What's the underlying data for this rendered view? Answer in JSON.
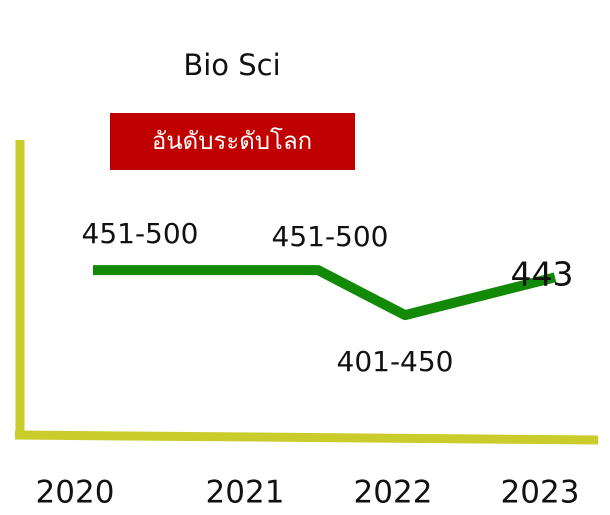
{
  "chart_data": {
    "type": "line",
    "title": "Bio Sci",
    "subtitle": "อันดับระดับโลก",
    "categories": [
      "2020",
      "2021",
      "2022",
      "2023"
    ],
    "series": [
      {
        "name": null,
        "color": "#138a07",
        "values": [
          451,
          451,
          401,
          443
        ],
        "value_labels": [
          "451-500",
          "451-500",
          "401-450",
          "443"
        ]
      }
    ],
    "ylim": [
      300,
      500
    ],
    "axis_color": "#c9cc2a",
    "badge_color": "#c00000"
  }
}
